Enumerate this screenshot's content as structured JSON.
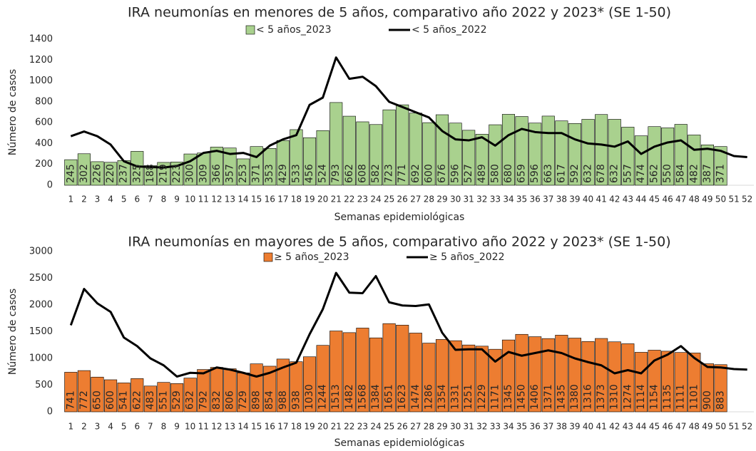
{
  "chart_data": [
    {
      "type": "bar",
      "title": "IRA neumonías en menores de 5 años, comparativo año 2022 y 2023* (SE 1-50)",
      "xlabel": "Semanas epidemiológicas",
      "ylabel": "Número de casos",
      "categories": [
        "1",
        "2",
        "3",
        "4",
        "5",
        "6",
        "7",
        "8",
        "9",
        "10",
        "11",
        "12",
        "13",
        "14",
        "15",
        "16",
        "17",
        "18",
        "19",
        "20",
        "21",
        "22",
        "23",
        "24",
        "25",
        "26",
        "27",
        "28",
        "29",
        "30",
        "31",
        "32",
        "33",
        "34",
        "35",
        "36",
        "37",
        "38",
        "39",
        "40",
        "41",
        "42",
        "43",
        "44",
        "45",
        "46",
        "47",
        "48",
        "49",
        "50",
        "51",
        "52"
      ],
      "ylim": [
        0,
        1400
      ],
      "yticks": [
        0,
        200,
        400,
        600,
        800,
        1000,
        1200,
        1400
      ],
      "series": [
        {
          "name": "< 5 años_2023",
          "type": "bar",
          "color": "#a9d18e",
          "values": [
            245,
            302,
            226,
            220,
            237,
            325,
            188,
            219,
            223,
            300,
            309,
            366,
            357,
            253,
            371,
            353,
            429,
            533,
            456,
            524,
            793,
            662,
            608,
            582,
            723,
            771,
            692,
            600,
            676,
            596,
            527,
            489,
            580,
            680,
            659,
            596,
            663,
            617,
            592,
            632,
            678,
            632,
            557,
            474,
            562,
            550,
            584,
            482,
            387,
            371,
            null,
            null
          ]
        },
        {
          "name": "< 5 años_2022",
          "type": "line",
          "color": "#000000",
          "values": [
            470,
            515,
            470,
            390,
            230,
            180,
            175,
            170,
            185,
            230,
            310,
            330,
            300,
            310,
            270,
            380,
            440,
            480,
            770,
            840,
            1225,
            1020,
            1040,
            950,
            800,
            750,
            700,
            650,
            520,
            440,
            430,
            460,
            380,
            480,
            540,
            510,
            500,
            500,
            440,
            400,
            390,
            370,
            420,
            300,
            370,
            410,
            430,
            340,
            350,
            330,
            280,
            270
          ]
        }
      ]
    },
    {
      "type": "bar",
      "title": "IRA neumonías en mayores de 5 años, comparativo año 2022 y 2023* (SE 1-50)",
      "xlabel": "Semanas epidemiológicas",
      "ylabel": "Número de casos",
      "categories": [
        "1",
        "2",
        "3",
        "4",
        "5",
        "6",
        "7",
        "8",
        "9",
        "10",
        "11",
        "12",
        "13",
        "14",
        "15",
        "16",
        "17",
        "18",
        "19",
        "20",
        "21",
        "22",
        "23",
        "24",
        "25",
        "26",
        "27",
        "28",
        "29",
        "30",
        "31",
        "32",
        "33",
        "34",
        "35",
        "36",
        "37",
        "38",
        "39",
        "40",
        "41",
        "42",
        "43",
        "44",
        "45",
        "46",
        "47",
        "48",
        "49",
        "50",
        "51",
        "52"
      ],
      "ylim": [
        0,
        3000
      ],
      "yticks": [
        0,
        500,
        1000,
        1500,
        2000,
        2500,
        3000
      ],
      "series": [
        {
          "name": "≥ 5 años_2023",
          "type": "bar",
          "color": "#ed7d31",
          "values": [
            741,
            772,
            650,
            600,
            541,
            622,
            483,
            551,
            529,
            632,
            792,
            832,
            806,
            729,
            898,
            854,
            988,
            938,
            1030,
            1244,
            1513,
            1482,
            1568,
            1384,
            1651,
            1623,
            1474,
            1286,
            1354,
            1331,
            1251,
            1229,
            1171,
            1345,
            1450,
            1406,
            1371,
            1435,
            1380,
            1316,
            1373,
            1310,
            1274,
            1114,
            1154,
            1135,
            1111,
            1101,
            900,
            883,
            null,
            null
          ]
        },
        {
          "name": "≥ 5 años_2022",
          "type": "line",
          "color": "#000000",
          "values": [
            1620,
            2300,
            2030,
            1870,
            1390,
            1230,
            1000,
            870,
            660,
            730,
            720,
            830,
            790,
            730,
            660,
            730,
            830,
            920,
            1450,
            1920,
            2600,
            2230,
            2220,
            2540,
            2050,
            1990,
            1980,
            2010,
            1480,
            1160,
            1170,
            1170,
            940,
            1120,
            1050,
            1100,
            1150,
            1100,
            1000,
            930,
            870,
            720,
            780,
            720,
            960,
            1070,
            1230,
            1010,
            840,
            830,
            800,
            790
          ]
        }
      ]
    }
  ]
}
